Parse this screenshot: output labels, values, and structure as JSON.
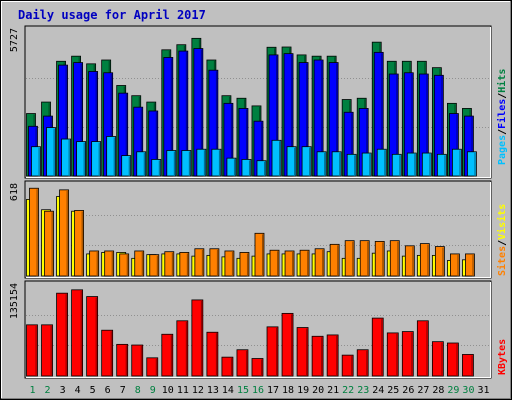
{
  "title": "Daily usage for April 2017",
  "colors": {
    "background": "#c0c0c0",
    "title": "#0000c0",
    "hits": "#008040",
    "files": "#0000ff",
    "pages": "#00c0ff",
    "visits": "#ffff00",
    "sites": "#ff8000",
    "kbytes": "#ff0000",
    "day_weekday": "#000000",
    "day_weekend": "#008040"
  },
  "chart_data": [
    {
      "type": "bar",
      "panel": "hits-files-pages",
      "y_max_label": "5727",
      "ylim": [
        0,
        5727
      ],
      "categories": [
        "1",
        "2",
        "3",
        "4",
        "5",
        "6",
        "7",
        "8",
        "9",
        "10",
        "11",
        "12",
        "13",
        "14",
        "15",
        "16",
        "17",
        "18",
        "19",
        "20",
        "21",
        "22",
        "23",
        "24",
        "25",
        "26",
        "27",
        "28",
        "29",
        "30",
        "31"
      ],
      "series": [
        {
          "name": "Hits",
          "values": [
            2450,
            2900,
            4500,
            4700,
            4400,
            4550,
            3550,
            3150,
            2900,
            4950,
            5150,
            5400,
            4550,
            3150,
            3050,
            2750,
            5050,
            5060,
            4750,
            4700,
            4700,
            3000,
            3050,
            5250,
            4500,
            4500,
            4500,
            4250,
            2850,
            2650,
            0
          ]
        },
        {
          "name": "Files",
          "values": [
            1950,
            2350,
            4350,
            4450,
            4100,
            4050,
            3250,
            2700,
            2550,
            4650,
            4900,
            5000,
            4150,
            2850,
            2650,
            2150,
            4750,
            4800,
            4450,
            4550,
            4450,
            2500,
            2650,
            4850,
            4000,
            4050,
            4000,
            3950,
            2450,
            2350,
            0
          ]
        },
        {
          "name": "Pages",
          "values": [
            1150,
            1900,
            1450,
            1350,
            1350,
            1550,
            800,
            950,
            650,
            1000,
            1000,
            1050,
            1050,
            700,
            650,
            600,
            1400,
            1150,
            1150,
            950,
            950,
            850,
            900,
            1050,
            850,
            900,
            900,
            850,
            1050,
            950,
            0
          ]
        }
      ],
      "legend": [
        "Pages",
        "/",
        "Files",
        "/",
        "Hits"
      ]
    },
    {
      "type": "bar",
      "panel": "visits-sites",
      "y_max_label": "618",
      "ylim": [
        0,
        618
      ],
      "categories": [
        "1",
        "2",
        "3",
        "4",
        "5",
        "6",
        "7",
        "8",
        "9",
        "10",
        "11",
        "12",
        "13",
        "14",
        "15",
        "16",
        "17",
        "18",
        "19",
        "20",
        "21",
        "22",
        "23",
        "24",
        "25",
        "26",
        "27",
        "28",
        "29",
        "30",
        "31"
      ],
      "series": [
        {
          "name": "Visits",
          "values": [
            520,
            450,
            540,
            440,
            150,
            160,
            160,
            120,
            145,
            150,
            150,
            135,
            140,
            130,
            120,
            135,
            150,
            150,
            150,
            150,
            165,
            120,
            120,
            155,
            170,
            135,
            140,
            140,
            105,
            110,
            0
          ]
        },
        {
          "name": "Sites",
          "values": [
            596,
            440,
            585,
            445,
            170,
            170,
            150,
            170,
            145,
            165,
            160,
            185,
            185,
            170,
            160,
            290,
            175,
            170,
            175,
            185,
            215,
            240,
            240,
            235,
            240,
            205,
            220,
            200,
            150,
            150,
            0
          ]
        }
      ],
      "legend": [
        "Sites",
        "/",
        "Visits"
      ]
    },
    {
      "type": "bar",
      "panel": "kbytes",
      "y_max_label": "135154",
      "ylim": [
        0,
        135154
      ],
      "categories": [
        "1",
        "2",
        "3",
        "4",
        "5",
        "6",
        "7",
        "8",
        "9",
        "10",
        "11",
        "12",
        "13",
        "14",
        "15",
        "16",
        "17",
        "18",
        "19",
        "20",
        "21",
        "22",
        "23",
        "24",
        "25",
        "26",
        "27",
        "28",
        "29",
        "30",
        "31"
      ],
      "series": [
        {
          "name": "KBytes",
          "values": [
            76000,
            76000,
            123000,
            128000,
            118000,
            68000,
            47000,
            46000,
            27000,
            62000,
            82000,
            113000,
            65000,
            28000,
            39000,
            26000,
            73000,
            93000,
            72000,
            59000,
            61000,
            31000,
            39000,
            86000,
            64000,
            66000,
            82000,
            51000,
            49000,
            32000,
            0
          ]
        }
      ],
      "legend": [
        "KBytes"
      ]
    }
  ],
  "x_axis": {
    "days": [
      {
        "label": "1",
        "weekend": true
      },
      {
        "label": "2",
        "weekend": true
      },
      {
        "label": "3",
        "weekend": false
      },
      {
        "label": "4",
        "weekend": false
      },
      {
        "label": "5",
        "weekend": false
      },
      {
        "label": "6",
        "weekend": false
      },
      {
        "label": "7",
        "weekend": false
      },
      {
        "label": "8",
        "weekend": true
      },
      {
        "label": "9",
        "weekend": true
      },
      {
        "label": "10",
        "weekend": false
      },
      {
        "label": "11",
        "weekend": false
      },
      {
        "label": "12",
        "weekend": false
      },
      {
        "label": "13",
        "weekend": false
      },
      {
        "label": "14",
        "weekend": false
      },
      {
        "label": "15",
        "weekend": true
      },
      {
        "label": "16",
        "weekend": true
      },
      {
        "label": "17",
        "weekend": false
      },
      {
        "label": "18",
        "weekend": false
      },
      {
        "label": "19",
        "weekend": false
      },
      {
        "label": "20",
        "weekend": false
      },
      {
        "label": "21",
        "weekend": false
      },
      {
        "label": "22",
        "weekend": true
      },
      {
        "label": "23",
        "weekend": true
      },
      {
        "label": "24",
        "weekend": false
      },
      {
        "label": "25",
        "weekend": false
      },
      {
        "label": "26",
        "weekend": false
      },
      {
        "label": "27",
        "weekend": false
      },
      {
        "label": "28",
        "weekend": false
      },
      {
        "label": "29",
        "weekend": true
      },
      {
        "label": "30",
        "weekend": true
      },
      {
        "label": "31",
        "weekend": false
      }
    ]
  }
}
